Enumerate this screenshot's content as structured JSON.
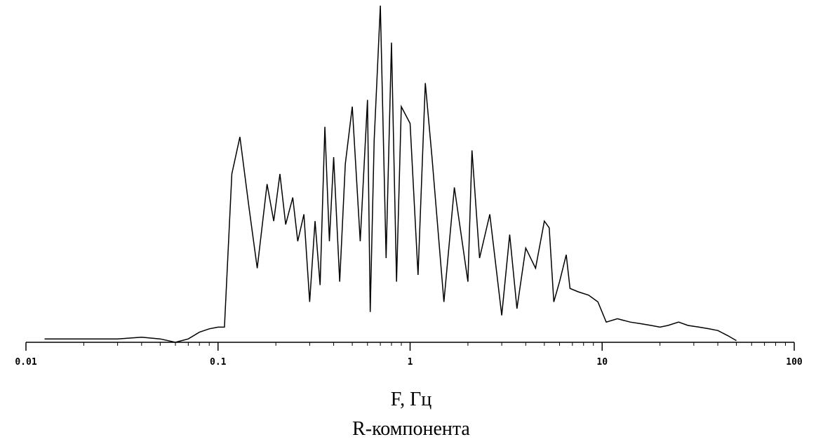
{
  "chart_data": {
    "type": "line",
    "xlabel": "F, Гц",
    "caption": "R-компонента",
    "ylabel": "",
    "title": "",
    "x_scale": "log",
    "xlim": [
      0.01,
      100
    ],
    "ylim": [
      0,
      1
    ],
    "grid": false,
    "legend": "none",
    "tick_values": [
      0.01,
      0.1,
      1,
      10,
      100
    ],
    "tick_labels": [
      "0.01",
      "0.1",
      "1",
      "10",
      "100"
    ],
    "series": [
      {
        "color": "#000000",
        "x": [
          0.0125,
          0.02,
          0.03,
          0.04,
          0.05,
          0.06,
          0.07,
          0.08,
          0.09,
          0.1,
          0.108,
          0.118,
          0.13,
          0.145,
          0.16,
          0.18,
          0.195,
          0.21,
          0.225,
          0.245,
          0.26,
          0.28,
          0.3,
          0.32,
          0.34,
          0.36,
          0.38,
          0.4,
          0.43,
          0.46,
          0.5,
          0.55,
          0.6,
          0.62,
          0.65,
          0.7,
          0.75,
          0.8,
          0.85,
          0.9,
          1.0,
          1.1,
          1.2,
          1.3,
          1.5,
          1.7,
          2.0,
          2.1,
          2.3,
          2.6,
          3.0,
          3.3,
          3.6,
          4.0,
          4.5,
          5.0,
          5.3,
          5.6,
          6.0,
          6.5,
          6.8,
          7.5,
          8.5,
          9.5,
          10.5,
          12,
          14,
          16,
          18,
          20,
          22,
          25,
          28,
          32,
          36,
          40,
          45,
          50
        ],
        "y": [
          0.01,
          0.01,
          0.01,
          0.015,
          0.01,
          0.0,
          0.01,
          0.03,
          0.04,
          0.045,
          0.045,
          0.5,
          0.61,
          0.4,
          0.22,
          0.47,
          0.36,
          0.5,
          0.35,
          0.43,
          0.3,
          0.38,
          0.12,
          0.36,
          0.17,
          0.64,
          0.3,
          0.55,
          0.18,
          0.53,
          0.7,
          0.3,
          0.72,
          0.09,
          0.6,
          1.0,
          0.25,
          0.89,
          0.18,
          0.7,
          0.65,
          0.2,
          0.77,
          0.55,
          0.12,
          0.46,
          0.18,
          0.57,
          0.25,
          0.38,
          0.08,
          0.32,
          0.1,
          0.28,
          0.22,
          0.36,
          0.34,
          0.12,
          0.18,
          0.26,
          0.16,
          0.15,
          0.14,
          0.12,
          0.06,
          0.07,
          0.06,
          0.055,
          0.05,
          0.045,
          0.05,
          0.06,
          0.05,
          0.045,
          0.04,
          0.035,
          0.02,
          0.005
        ]
      }
    ]
  }
}
